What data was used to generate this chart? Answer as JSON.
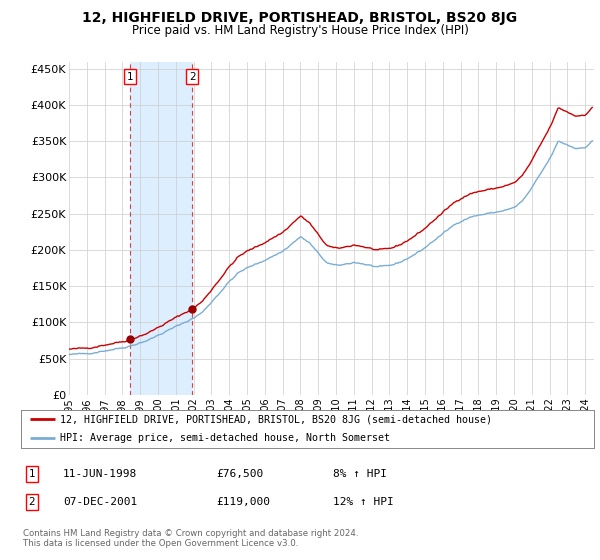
{
  "title": "12, HIGHFIELD DRIVE, PORTISHEAD, BRISTOL, BS20 8JG",
  "subtitle": "Price paid vs. HM Land Registry's House Price Index (HPI)",
  "legend_line1": "12, HIGHFIELD DRIVE, PORTISHEAD, BRISTOL, BS20 8JG (semi-detached house)",
  "legend_line2": "HPI: Average price, semi-detached house, North Somerset",
  "footnote": "Contains HM Land Registry data © Crown copyright and database right 2024.\nThis data is licensed under the Open Government Licence v3.0.",
  "sale1_date": "11-JUN-1998",
  "sale1_price": 76500,
  "sale1_hpi": "8% ↑ HPI",
  "sale1_label": "1",
  "sale2_date": "07-DEC-2001",
  "sale2_price": 119000,
  "sale2_hpi": "12% ↑ HPI",
  "sale2_label": "2",
  "sale1_year": 1998.44,
  "sale2_year": 2001.92,
  "hpi_line_color": "#7aadd4",
  "price_line_color": "#cc0000",
  "dot_color": "#990000",
  "shade_color": "#ddeeff",
  "vline_color": "#cc4444",
  "background_color": "#ffffff",
  "grid_color": "#cccccc",
  "ylim": [
    0,
    460000
  ],
  "xlim_start": 1995.0,
  "xlim_end": 2024.5,
  "yticks": [
    0,
    50000,
    100000,
    150000,
    200000,
    250000,
    300000,
    350000,
    400000,
    450000
  ],
  "ytick_labels": [
    "£0",
    "£50K",
    "£100K",
    "£150K",
    "£200K",
    "£250K",
    "£300K",
    "£350K",
    "£400K",
    "£450K"
  ]
}
